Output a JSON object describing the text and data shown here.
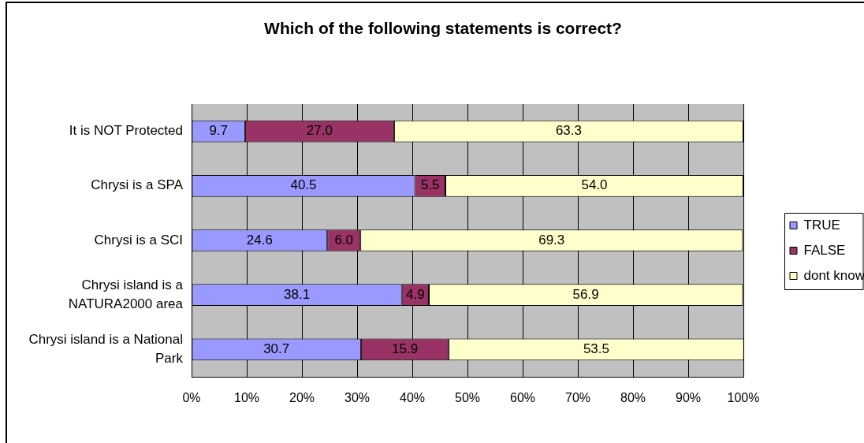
{
  "chart_data": {
    "type": "bar",
    "orientation": "horizontal",
    "stacked": true,
    "title": "Which of the following statements is correct?",
    "categories": [
      "It is NOT Protected",
      "Chrysi is a SPA",
      "Chrysi is a SCI",
      "Chrysi island is a NATURA2000 area",
      "Chrysi island is a National Park"
    ],
    "series": [
      {
        "name": "TRUE",
        "color": "#9999ff",
        "values": [
          9.7,
          40.5,
          24.6,
          38.1,
          30.7
        ],
        "value_labels": [
          "9.7",
          "40.5",
          "24.6",
          "38.1",
          "30.7"
        ]
      },
      {
        "name": "FALSE",
        "color": "#993366",
        "values": [
          27.0,
          5.5,
          6.0,
          4.9,
          15.9
        ],
        "value_labels": [
          "27.0",
          "5.5",
          "6.0",
          "4.9",
          "15.9"
        ]
      },
      {
        "name": "dont know",
        "color": "#ffffcc",
        "values": [
          63.3,
          54.0,
          69.3,
          56.9,
          53.5
        ],
        "value_labels": [
          "63.3",
          "54.0",
          "69.3",
          "56.9",
          "53.5"
        ]
      }
    ],
    "xlim": [
      0,
      100
    ],
    "xticks": [
      {
        "value": 0,
        "label": "0%"
      },
      {
        "value": 10,
        "label": "10%"
      },
      {
        "value": 20,
        "label": "20%"
      },
      {
        "value": 30,
        "label": "30%"
      },
      {
        "value": 40,
        "label": "40%"
      },
      {
        "value": 50,
        "label": "50%"
      },
      {
        "value": 60,
        "label": "60%"
      },
      {
        "value": 70,
        "label": "70%"
      },
      {
        "value": 80,
        "label": "80%"
      },
      {
        "value": 90,
        "label": "90%"
      },
      {
        "value": 100,
        "label": "100%"
      }
    ],
    "grid": "x",
    "legend": "right"
  }
}
